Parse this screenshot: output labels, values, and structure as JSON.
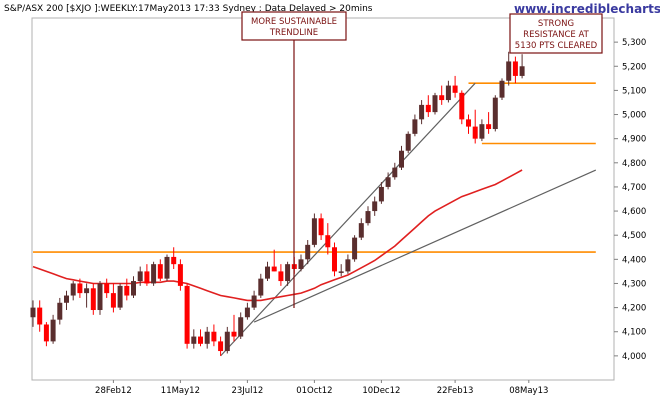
{
  "header": {
    "title": "S&P/ASX 200 [$XJO ]:WEEKLY:17May2013 17:33 Sydney : Data Delayed > 20mins",
    "brand": "www.incrediblecharts.com"
  },
  "annotations": [
    {
      "lines": [
        "MORE SUSTAINABLE",
        "TRENDLINE"
      ]
    },
    {
      "lines": [
        "STRONG",
        "RESISTANCE AT",
        "5130 PTS CLEARED"
      ]
    }
  ],
  "chart_data": {
    "type": "candlestick",
    "y_axis": {
      "min": 3900,
      "max": 5400,
      "ticks": [
        4000,
        4100,
        4200,
        4300,
        4400,
        4500,
        4600,
        4700,
        4800,
        4900,
        5000,
        5100,
        5200,
        5300
      ],
      "position": "right"
    },
    "x_axis": {
      "labels": [
        {
          "label": "28Feb12",
          "index": 12
        },
        {
          "label": "11May12",
          "index": 22
        },
        {
          "label": "23Jul12",
          "index": 32
        },
        {
          "label": "01Oct12",
          "index": 42
        },
        {
          "label": "10Dec12",
          "index": 52
        },
        {
          "label": "22Feb13",
          "index": 63
        },
        {
          "label": "08May13",
          "index": 74
        }
      ]
    },
    "colors": {
      "up": "#5a2e2e",
      "down": "#ff0000",
      "resistance": "#ff8c00",
      "trendline": "#606060",
      "moving_average": "#e02020",
      "annotation": "#7a1010"
    },
    "candles": [
      {
        "o": 4160,
        "h": 4230,
        "l": 4120,
        "c": 4200
      },
      {
        "o": 4200,
        "h": 4230,
        "l": 4100,
        "c": 4130
      },
      {
        "o": 4130,
        "h": 4140,
        "l": 4040,
        "c": 4060
      },
      {
        "o": 4060,
        "h": 4170,
        "l": 4050,
        "c": 4150
      },
      {
        "o": 4150,
        "h": 4240,
        "l": 4130,
        "c": 4220
      },
      {
        "o": 4220,
        "h": 4270,
        "l": 4190,
        "c": 4250
      },
      {
        "o": 4250,
        "h": 4310,
        "l": 4230,
        "c": 4300
      },
      {
        "o": 4300,
        "h": 4320,
        "l": 4240,
        "c": 4260
      },
      {
        "o": 4260,
        "h": 4300,
        "l": 4200,
        "c": 4280
      },
      {
        "o": 4280,
        "h": 4300,
        "l": 4170,
        "c": 4190
      },
      {
        "o": 4190,
        "h": 4310,
        "l": 4170,
        "c": 4300
      },
      {
        "o": 4300,
        "h": 4320,
        "l": 4240,
        "c": 4260
      },
      {
        "o": 4260,
        "h": 4300,
        "l": 4180,
        "c": 4200
      },
      {
        "o": 4200,
        "h": 4300,
        "l": 4190,
        "c": 4290
      },
      {
        "o": 4290,
        "h": 4320,
        "l": 4230,
        "c": 4250
      },
      {
        "o": 4250,
        "h": 4330,
        "l": 4240,
        "c": 4310
      },
      {
        "o": 4310,
        "h": 4370,
        "l": 4290,
        "c": 4350
      },
      {
        "o": 4350,
        "h": 4380,
        "l": 4290,
        "c": 4300
      },
      {
        "o": 4300,
        "h": 4390,
        "l": 4290,
        "c": 4380
      },
      {
        "o": 4380,
        "h": 4400,
        "l": 4310,
        "c": 4320
      },
      {
        "o": 4320,
        "h": 4420,
        "l": 4310,
        "c": 4410
      },
      {
        "o": 4410,
        "h": 4450,
        "l": 4360,
        "c": 4380
      },
      {
        "o": 4380,
        "h": 4400,
        "l": 4270,
        "c": 4290
      },
      {
        "o": 4290,
        "h": 4300,
        "l": 4030,
        "c": 4050
      },
      {
        "o": 4050,
        "h": 4110,
        "l": 4030,
        "c": 4080
      },
      {
        "o": 4080,
        "h": 4110,
        "l": 4040,
        "c": 4050
      },
      {
        "o": 4050,
        "h": 4120,
        "l": 4030,
        "c": 4100
      },
      {
        "o": 4100,
        "h": 4130,
        "l": 4040,
        "c": 4060
      },
      {
        "o": 4060,
        "h": 4080,
        "l": 4000,
        "c": 4020
      },
      {
        "o": 4020,
        "h": 4120,
        "l": 4010,
        "c": 4100
      },
      {
        "o": 4100,
        "h": 4170,
        "l": 4060,
        "c": 4080
      },
      {
        "o": 4080,
        "h": 4180,
        "l": 4070,
        "c": 4160
      },
      {
        "o": 4160,
        "h": 4220,
        "l": 4150,
        "c": 4200
      },
      {
        "o": 4200,
        "h": 4270,
        "l": 4190,
        "c": 4250
      },
      {
        "o": 4250,
        "h": 4340,
        "l": 4240,
        "c": 4320
      },
      {
        "o": 4320,
        "h": 4390,
        "l": 4310,
        "c": 4370
      },
      {
        "o": 4370,
        "h": 4440,
        "l": 4350,
        "c": 4350
      },
      {
        "o": 4350,
        "h": 4380,
        "l": 4290,
        "c": 4310
      },
      {
        "o": 4310,
        "h": 4390,
        "l": 4290,
        "c": 4380
      },
      {
        "o": 4380,
        "h": 4410,
        "l": 4340,
        "c": 4360
      },
      {
        "o": 4360,
        "h": 4420,
        "l": 4350,
        "c": 4400
      },
      {
        "o": 4400,
        "h": 4480,
        "l": 4380,
        "c": 4460
      },
      {
        "o": 4460,
        "h": 4590,
        "l": 4450,
        "c": 4570
      },
      {
        "o": 4570,
        "h": 4590,
        "l": 4480,
        "c": 4500
      },
      {
        "o": 4500,
        "h": 4550,
        "l": 4420,
        "c": 4450
      },
      {
        "o": 4450,
        "h": 4470,
        "l": 4330,
        "c": 4350
      },
      {
        "o": 4350,
        "h": 4380,
        "l": 4330,
        "c": 4350
      },
      {
        "o": 4350,
        "h": 4420,
        "l": 4340,
        "c": 4400
      },
      {
        "o": 4400,
        "h": 4500,
        "l": 4390,
        "c": 4490
      },
      {
        "o": 4490,
        "h": 4570,
        "l": 4480,
        "c": 4550
      },
      {
        "o": 4550,
        "h": 4620,
        "l": 4540,
        "c": 4600
      },
      {
        "o": 4600,
        "h": 4660,
        "l": 4580,
        "c": 4640
      },
      {
        "o": 4640,
        "h": 4720,
        "l": 4630,
        "c": 4700
      },
      {
        "o": 4700,
        "h": 4760,
        "l": 4690,
        "c": 4740
      },
      {
        "o": 4740,
        "h": 4800,
        "l": 4730,
        "c": 4780
      },
      {
        "o": 4780,
        "h": 4870,
        "l": 4770,
        "c": 4850
      },
      {
        "o": 4850,
        "h": 4930,
        "l": 4840,
        "c": 4920
      },
      {
        "o": 4920,
        "h": 5000,
        "l": 4910,
        "c": 4980
      },
      {
        "o": 4980,
        "h": 5060,
        "l": 4960,
        "c": 5040
      },
      {
        "o": 5040,
        "h": 5080,
        "l": 4990,
        "c": 5010
      },
      {
        "o": 5010,
        "h": 5090,
        "l": 5000,
        "c": 5080
      },
      {
        "o": 5080,
        "h": 5120,
        "l": 5040,
        "c": 5060
      },
      {
        "o": 5060,
        "h": 5140,
        "l": 5050,
        "c": 5120
      },
      {
        "o": 5120,
        "h": 5160,
        "l": 5070,
        "c": 5090
      },
      {
        "o": 5090,
        "h": 5100,
        "l": 4960,
        "c": 4980
      },
      {
        "o": 4980,
        "h": 5000,
        "l": 4920,
        "c": 4950
      },
      {
        "o": 4950,
        "h": 5020,
        "l": 4880,
        "c": 4900
      },
      {
        "o": 4900,
        "h": 4980,
        "l": 4890,
        "c": 4960
      },
      {
        "o": 4960,
        "h": 5010,
        "l": 4920,
        "c": 4940
      },
      {
        "o": 4940,
        "h": 5080,
        "l": 4930,
        "c": 5070
      },
      {
        "o": 5070,
        "h": 5150,
        "l": 5060,
        "c": 5140
      },
      {
        "o": 5140,
        "h": 5260,
        "l": 5120,
        "c": 5220
      },
      {
        "o": 5220,
        "h": 5240,
        "l": 5130,
        "c": 5160
      },
      {
        "o": 5160,
        "h": 5250,
        "l": 5150,
        "c": 5200
      }
    ],
    "moving_average": [
      4370,
      4360,
      4350,
      4340,
      4330,
      4320,
      4315,
      4310,
      4305,
      4300,
      4300,
      4300,
      4300,
      4300,
      4300,
      4300,
      4305,
      4305,
      4305,
      4305,
      4310,
      4310,
      4305,
      4300,
      4290,
      4280,
      4270,
      4260,
      4250,
      4245,
      4240,
      4235,
      4230,
      4230,
      4230,
      4235,
      4240,
      4245,
      4250,
      4255,
      4260,
      4270,
      4280,
      4295,
      4305,
      4315,
      4325,
      4335,
      4350,
      4365,
      4380,
      4395,
      4415,
      4435,
      4455,
      4480,
      4505,
      4530,
      4555,
      4580,
      4600,
      4615,
      4630,
      4645,
      4660,
      4670,
      4680,
      4690,
      4700,
      4710,
      4725,
      4740,
      4755,
      4770
    ],
    "resistance_levels": [
      {
        "value": 4430,
        "from": 0,
        "to": 84
      },
      {
        "value": 5130,
        "from": 65,
        "to": 84
      },
      {
        "value": 4880,
        "from": 67,
        "to": 84
      }
    ],
    "trendlines": [
      {
        "from": [
          28,
          4000
        ],
        "to": [
          66,
          5130
        ]
      },
      {
        "from": [
          33,
          4140
        ],
        "to": [
          84,
          4770
        ]
      }
    ]
  }
}
